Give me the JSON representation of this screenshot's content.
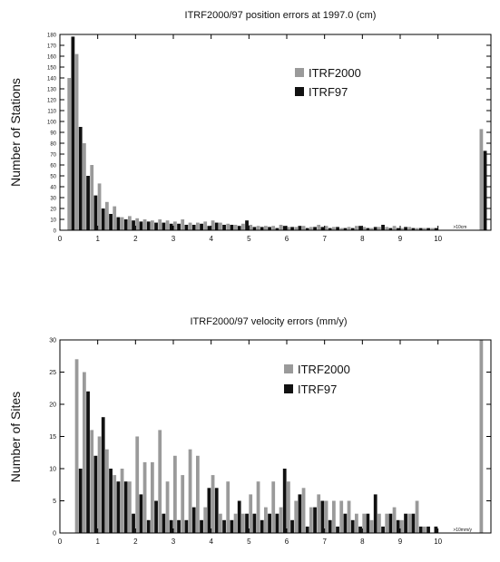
{
  "chart_data": [
    {
      "type": "bar",
      "title": "ITRF2000/97 position errors at 1997.0 (cm)",
      "xlabel": "",
      "ylabel": "Number of Stations",
      "xlim": [
        0,
        11.4
      ],
      "ylim": [
        0,
        180
      ],
      "xticks": [
        "0",
        "1",
        "2",
        "3",
        "4",
        "5",
        "6",
        "7",
        "8",
        "9",
        "10"
      ],
      "yticks": [
        "0",
        "10",
        "20",
        "30",
        "40",
        "50",
        "60",
        "70",
        "80",
        "90",
        "100",
        "110",
        "120",
        "130",
        "140",
        "150",
        "160",
        "170",
        "180"
      ],
      "overflow_label": ">10cm",
      "legend_position": "top-right",
      "bin_width": 0.2,
      "x": [
        0.1,
        0.3,
        0.5,
        0.7,
        0.9,
        1.1,
        1.3,
        1.5,
        1.7,
        1.9,
        2.1,
        2.3,
        2.5,
        2.7,
        2.9,
        3.1,
        3.3,
        3.5,
        3.7,
        3.9,
        4.1,
        4.3,
        4.5,
        4.7,
        4.9,
        5.1,
        5.3,
        5.5,
        5.7,
        5.9,
        6.1,
        6.3,
        6.5,
        6.7,
        6.9,
        7.1,
        7.3,
        7.5,
        7.7,
        7.9,
        8.1,
        8.3,
        8.5,
        8.7,
        8.9,
        9.1,
        9.3,
        9.5,
        9.7,
        9.9,
        11.2
      ],
      "series": [
        {
          "name": "ITRF2000",
          "color": "#9a9a9a",
          "values": [
            0,
            140,
            162,
            80,
            60,
            43,
            26,
            22,
            12,
            13,
            11,
            10,
            9,
            10,
            9,
            8,
            10,
            7,
            7,
            8,
            9,
            7,
            6,
            5,
            6,
            5,
            4,
            4,
            4,
            5,
            3,
            3,
            4,
            3,
            5,
            4,
            3,
            2,
            3,
            4,
            3,
            2,
            3,
            3,
            4,
            2,
            3,
            2,
            2,
            2,
            93
          ]
        },
        {
          "name": "ITRF97",
          "color": "#111111",
          "values": [
            0,
            178,
            95,
            50,
            32,
            20,
            15,
            12,
            10,
            9,
            8,
            8,
            7,
            7,
            6,
            6,
            5,
            5,
            6,
            4,
            7,
            5,
            5,
            4,
            9,
            3,
            3,
            3,
            2,
            4,
            3,
            4,
            2,
            3,
            3,
            2,
            3,
            2,
            2,
            4,
            2,
            3,
            5,
            2,
            2,
            3,
            2,
            2,
            2,
            2,
            73
          ]
        }
      ]
    },
    {
      "type": "bar",
      "title": "ITRF2000/97 velocity errors (mm/y)",
      "xlabel": "",
      "ylabel": "Number of Sites",
      "xlim": [
        0,
        11.4
      ],
      "ylim": [
        0,
        30
      ],
      "xticks": [
        "0",
        "1",
        "2",
        "3",
        "4",
        "5",
        "6",
        "7",
        "8",
        "9",
        "10"
      ],
      "yticks": [
        "0",
        "5",
        "10",
        "15",
        "20",
        "25",
        "30"
      ],
      "overflow_label": ">10mm/y",
      "legend_position": "top-right",
      "bin_width": 0.2,
      "x": [
        0.1,
        0.3,
        0.5,
        0.7,
        0.9,
        1.1,
        1.3,
        1.5,
        1.7,
        1.9,
        2.1,
        2.3,
        2.5,
        2.7,
        2.9,
        3.1,
        3.3,
        3.5,
        3.7,
        3.9,
        4.1,
        4.3,
        4.5,
        4.7,
        4.9,
        5.1,
        5.3,
        5.5,
        5.7,
        5.9,
        6.1,
        6.3,
        6.5,
        6.7,
        6.9,
        7.1,
        7.3,
        7.5,
        7.7,
        7.9,
        8.1,
        8.3,
        8.5,
        8.7,
        8.9,
        9.1,
        9.3,
        9.5,
        9.7,
        9.9,
        11.2
      ],
      "series": [
        {
          "name": "ITRF2000",
          "color": "#9a9a9a",
          "values": [
            0,
            0,
            27,
            25,
            16,
            15,
            13,
            9,
            10,
            8,
            15,
            11,
            11,
            16,
            8,
            12,
            9,
            13,
            12,
            4,
            9,
            3,
            8,
            3,
            3,
            6,
            8,
            4,
            8,
            4,
            8,
            5,
            7,
            4,
            6,
            5,
            5,
            5,
            5,
            3,
            3,
            2,
            3,
            3,
            4,
            2,
            3,
            5,
            1,
            0,
            30
          ]
        },
        {
          "name": "ITRF97",
          "color": "#111111",
          "values": [
            0,
            0,
            10,
            22,
            12,
            18,
            10,
            8,
            8,
            3,
            6,
            2,
            5,
            3,
            2,
            2,
            2,
            4,
            2,
            7,
            7,
            2,
            2,
            5,
            3,
            3,
            2,
            3,
            3,
            10,
            2,
            6,
            1,
            4,
            5,
            2,
            1,
            3,
            2,
            1,
            3,
            6,
            1,
            3,
            2,
            3,
            3,
            1,
            1,
            1,
            0
          ]
        }
      ]
    }
  ]
}
